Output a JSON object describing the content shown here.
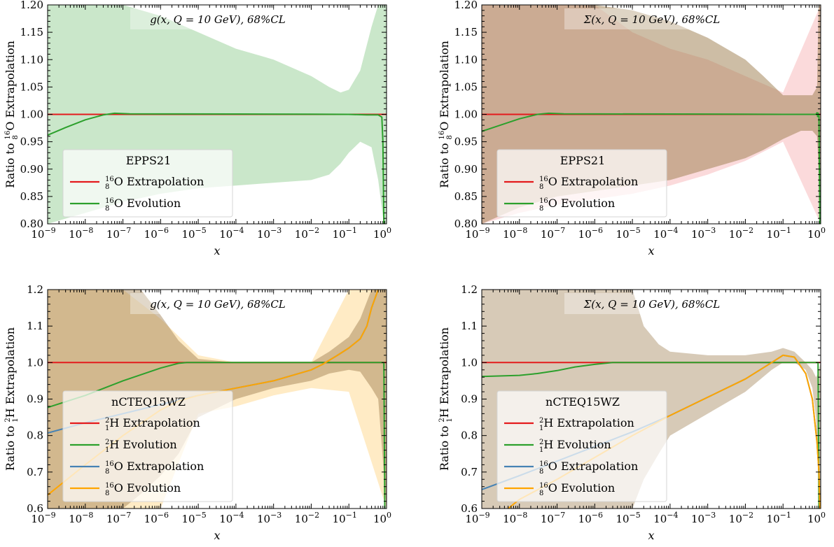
{
  "chart_data": [
    {
      "type": "area",
      "panel": "top-left",
      "title": "g(x, Q = 10 GeV), 68%CL",
      "xlabel": "x",
      "ylabel": "Ratio to 16/8O Extrapolation",
      "ylabel_parts": [
        "Ratio to ",
        "16",
        "8",
        "O Extrapolation"
      ],
      "xscale": "log",
      "xlim": [
        1e-09,
        1
      ],
      "ylim": [
        0.8,
        1.2
      ],
      "yticks": [
        0.8,
        0.85,
        0.9,
        0.95,
        1.0,
        1.05,
        1.1,
        1.15,
        1.2
      ],
      "ytick_labels": [
        "0.80",
        "0.85",
        "0.90",
        "0.95",
        "1.00",
        "1.05",
        "1.10",
        "1.15",
        "1.20"
      ],
      "xtick_exponents": [
        "-9",
        "-8",
        "-7",
        "-6",
        "-5",
        "-4",
        "-3",
        "-2",
        "-1",
        "0"
      ],
      "legend_position": "lower-left",
      "legend_title": "EPPS21",
      "legend": [
        {
          "color": "#e41a1c",
          "parts": [
            "",
            "16",
            "8",
            "O Extrapolation"
          ]
        },
        {
          "color": "#2ca02c",
          "parts": [
            "",
            "16",
            "8",
            "O Evolution"
          ]
        }
      ],
      "bands": [
        {
          "color": "#2ca02c",
          "opacity": 0.25,
          "x": [
            1e-09,
            1e-08,
            1e-07,
            1e-06,
            1e-05,
            0.0001,
            0.001,
            0.01,
            0.03,
            0.06,
            0.1,
            0.2,
            0.4,
            0.6,
            0.85,
            1
          ],
          "upper": [
            1.2,
            1.2,
            1.2,
            1.18,
            1.15,
            1.12,
            1.1,
            1.07,
            1.05,
            1.04,
            1.045,
            1.08,
            1.16,
            1.2,
            1.2,
            1.2
          ],
          "lower": [
            0.8,
            0.82,
            0.84,
            0.855,
            0.865,
            0.87,
            0.875,
            0.88,
            0.89,
            0.91,
            0.93,
            0.95,
            0.94,
            0.88,
            0.8,
            0.8
          ]
        }
      ],
      "series": [
        {
          "color": "#e41a1c",
          "x": [
            1e-09,
            1
          ],
          "y": [
            1.0,
            1.0
          ]
        },
        {
          "color": "#2ca02c",
          "x": [
            1e-09,
            3e-09,
            1e-08,
            3e-08,
            6e-08,
            1.5e-07,
            1e-06,
            0.0001,
            0.01,
            0.1,
            0.3,
            0.6,
            0.75,
            0.8,
            0.85
          ],
          "y": [
            0.962,
            0.976,
            0.99,
            0.999,
            1.002,
            1.001,
            1.0008,
            1.0006,
            1.0003,
            1.0,
            0.999,
            0.999,
            0.995,
            0.95,
            0.8
          ]
        }
      ]
    },
    {
      "type": "area",
      "panel": "top-right",
      "title": "Σ(x, Q = 10 GeV), 68%CL",
      "xlabel": "x",
      "ylabel": "Ratio to 16/8O Extrapolation",
      "ylabel_parts": [
        "Ratio to ",
        "16",
        "8",
        "O Extrapolation"
      ],
      "xscale": "log",
      "xlim": [
        1e-09,
        1
      ],
      "ylim": [
        0.8,
        1.2
      ],
      "yticks": [
        0.8,
        0.85,
        0.9,
        0.95,
        1.0,
        1.05,
        1.1,
        1.15,
        1.2
      ],
      "ytick_labels": [
        "0.80",
        "0.85",
        "0.90",
        "0.95",
        "1.00",
        "1.05",
        "1.10",
        "1.15",
        "1.20"
      ],
      "xtick_exponents": [
        "-9",
        "-8",
        "-7",
        "-6",
        "-5",
        "-4",
        "-3",
        "-2",
        "-1",
        "0"
      ],
      "legend_position": "lower-left",
      "legend_title": "EPPS21",
      "legend": [
        {
          "color": "#e41a1c",
          "parts": [
            "",
            "16",
            "8",
            "O Extrapolation"
          ]
        },
        {
          "color": "#2ca02c",
          "parts": [
            "",
            "16",
            "8",
            "O Evolution"
          ]
        }
      ],
      "bands": [
        {
          "color": "#e41a1c",
          "opacity": 0.16,
          "x": [
            1e-09,
            1e-08,
            1e-07,
            1e-06,
            1e-05,
            0.0001,
            0.001,
            0.01,
            0.1,
            1
          ],
          "upper": [
            1.2,
            1.2,
            1.2,
            1.2,
            1.15,
            1.12,
            1.1,
            1.07,
            1.04,
            1.2
          ],
          "lower": [
            0.8,
            0.82,
            0.835,
            0.845,
            0.855,
            0.87,
            0.89,
            0.915,
            0.95,
            0.8
          ]
        },
        {
          "color": "#9b7b4c",
          "opacity": 0.5,
          "x": [
            1e-09,
            1e-08,
            1e-07,
            1e-06,
            1e-05,
            0.0001,
            0.001,
            0.01,
            0.03,
            0.1,
            0.3,
            0.6,
            0.8,
            0.88,
            0.95,
            1
          ],
          "upper": [
            1.2,
            1.2,
            1.2,
            1.2,
            1.19,
            1.17,
            1.14,
            1.1,
            1.07,
            1.035,
            1.035,
            1.035,
            1.05,
            1.2,
            1.2,
            1.2
          ],
          "lower": [
            0.8,
            0.83,
            0.85,
            0.86,
            0.87,
            0.88,
            0.9,
            0.92,
            0.935,
            0.955,
            0.97,
            0.97,
            0.96,
            0.9,
            0.8,
            0.8
          ]
        }
      ],
      "series": [
        {
          "color": "#e41a1c",
          "x": [
            1e-09,
            1
          ],
          "y": [
            1.0,
            1.0
          ]
        },
        {
          "color": "#2ca02c",
          "x": [
            1e-09,
            3e-09,
            1e-08,
            3e-08,
            6e-08,
            1.5e-07,
            1e-06,
            0.0001,
            0.01,
            0.1,
            0.5,
            0.75,
            0.8,
            0.83,
            0.86,
            0.9,
            0.95
          ],
          "y": [
            0.969,
            0.98,
            0.992,
            1.0,
            1.002,
            1.001,
            1.0008,
            1.0006,
            1.0003,
            1.0,
            1.0,
            1.0,
            1.003,
            0.996,
            1.002,
            0.998,
            0.8
          ]
        }
      ]
    },
    {
      "type": "area",
      "panel": "bottom-left",
      "title": "g(x, Q = 10 GeV), 68%CL",
      "xlabel": "x",
      "ylabel": "Ratio to 2/1H Extrapolation",
      "ylabel_parts": [
        "Ratio to ",
        "2",
        "1",
        "H Extrapolation"
      ],
      "xscale": "log",
      "xlim": [
        1e-09,
        1
      ],
      "ylim": [
        0.6,
        1.2
      ],
      "yticks": [
        0.6,
        0.7,
        0.8,
        0.9,
        1.0,
        1.1,
        1.2
      ],
      "ytick_labels": [
        "0.6",
        "0.7",
        "0.8",
        "0.9",
        "1.0",
        "1.1",
        "1.2"
      ],
      "xtick_exponents": [
        "-9",
        "-8",
        "-7",
        "-6",
        "-5",
        "-4",
        "-3",
        "-2",
        "-1",
        "0"
      ],
      "legend_position": "lower-left",
      "legend_title": "nCTEQ15WZ",
      "legend": [
        {
          "color": "#e41a1c",
          "parts": [
            "",
            "2",
            "1",
            "H Extrapolation"
          ]
        },
        {
          "color": "#2ca02c",
          "parts": [
            "",
            "2",
            "1",
            "H Evolution"
          ]
        },
        {
          "color": "#4682b4",
          "parts": [
            "",
            "16",
            "8",
            "O Extrapolation"
          ]
        },
        {
          "color": "#ffa500",
          "parts": [
            "",
            "16",
            "8",
            "O Evolution"
          ]
        }
      ],
      "bands": [
        {
          "color": "#ffd27f",
          "opacity": 0.45,
          "x": [
            1e-09,
            1e-08,
            1e-07,
            1e-06,
            1e-05,
            0.0001,
            0.001,
            0.01,
            0.1,
            1
          ],
          "upper": [
            1.2,
            1.2,
            1.2,
            1.12,
            1.02,
            1.0,
            1.0,
            1.0,
            1.2,
            1.2
          ],
          "lower": [
            0.6,
            0.6,
            0.6,
            0.6,
            0.86,
            0.88,
            0.91,
            0.93,
            0.92,
            0.6
          ]
        },
        {
          "color": "#9b7b4c",
          "opacity": 0.45,
          "x": [
            1e-09,
            1e-08,
            1e-07,
            3e-07,
            1e-06,
            3e-06,
            1e-05,
            0.0001,
            0.001,
            0.01,
            0.03,
            0.1,
            0.2,
            0.4,
            0.6,
            1
          ],
          "upper": [
            1.2,
            1.2,
            1.2,
            1.2,
            1.13,
            1.06,
            1.01,
            1.0,
            1.0,
            1.0,
            1.03,
            1.07,
            1.12,
            1.2,
            1.2,
            1.2
          ],
          "lower": [
            0.6,
            0.6,
            0.6,
            0.64,
            0.69,
            0.75,
            0.85,
            0.9,
            0.93,
            0.95,
            0.97,
            0.98,
            0.975,
            0.93,
            0.9,
            0.6
          ]
        }
      ],
      "series": [
        {
          "color": "#e41a1c",
          "x": [
            1e-09,
            1
          ],
          "y": [
            1.0,
            1.0
          ]
        },
        {
          "color": "#2ca02c",
          "x": [
            1e-09,
            1e-08,
            1e-07,
            1e-06,
            3e-06,
            5e-06,
            1e-05,
            0.001,
            0.1,
            0.5,
            0.85,
            0.9
          ],
          "y": [
            0.877,
            0.91,
            0.95,
            0.985,
            0.998,
            1.0,
            1.0,
            1.0,
            1.0,
            1.0,
            1.0,
            0.6
          ]
        },
        {
          "color": "#4682b4",
          "x": [
            1e-09,
            1e-08,
            1e-07,
            1e-06,
            1e-05,
            0.0001,
            0.001,
            0.01,
            0.02,
            0.05,
            0.1,
            0.2,
            0.3,
            0.4,
            0.6
          ],
          "y": [
            0.807,
            0.835,
            0.86,
            0.885,
            0.91,
            0.93,
            0.95,
            0.98,
            0.995,
            1.02,
            1.04,
            1.065,
            1.1,
            1.15,
            1.2
          ]
        },
        {
          "color": "#ffa500",
          "x": [
            1e-09,
            1e-08,
            1e-07,
            1e-06,
            3e-06,
            1e-05,
            0.0001,
            0.001,
            0.01,
            0.02,
            0.05,
            0.1,
            0.2,
            0.3,
            0.4,
            0.6
          ],
          "y": [
            0.637,
            0.72,
            0.8,
            0.87,
            0.895,
            0.91,
            0.93,
            0.95,
            0.98,
            0.995,
            1.02,
            1.04,
            1.065,
            1.1,
            1.15,
            1.2
          ]
        }
      ]
    },
    {
      "type": "area",
      "panel": "bottom-right",
      "title": "Σ(x, Q = 10 GeV), 68%CL",
      "xlabel": "x",
      "ylabel": "Ratio to 2/1H Extrapolation",
      "ylabel_parts": [
        "Ratio to ",
        "2",
        "1",
        "H Extrapolation"
      ],
      "xscale": "log",
      "xlim": [
        1e-09,
        1
      ],
      "ylim": [
        0.6,
        1.2
      ],
      "yticks": [
        0.6,
        0.7,
        0.8,
        0.9,
        1.0,
        1.1,
        1.2
      ],
      "ytick_labels": [
        "0.6",
        "0.7",
        "0.8",
        "0.9",
        "1.0",
        "1.1",
        "1.2"
      ],
      "xtick_exponents": [
        "-9",
        "-8",
        "-7",
        "-6",
        "-5",
        "-4",
        "-3",
        "-2",
        "-1",
        "0"
      ],
      "legend_position": "lower-left",
      "legend_title": "nCTEQ15WZ",
      "legend": [
        {
          "color": "#e41a1c",
          "parts": [
            "",
            "2",
            "1",
            "H Extrapolation"
          ]
        },
        {
          "color": "#2ca02c",
          "parts": [
            "",
            "2",
            "1",
            "H Evolution"
          ]
        },
        {
          "color": "#4682b4",
          "parts": [
            "",
            "16",
            "8",
            "O Extrapolation"
          ]
        },
        {
          "color": "#ffa500",
          "parts": [
            "",
            "16",
            "8",
            "O Evolution"
          ]
        }
      ],
      "bands": [
        {
          "color": "#9b7b4c",
          "opacity": 0.4,
          "x": [
            1e-09,
            1e-08,
            1e-07,
            1e-06,
            2e-06,
            5e-06,
            1e-05,
            2e-05,
            5e-05,
            0.0001,
            0.001,
            0.01,
            0.05,
            0.1,
            0.2,
            0.4,
            0.6,
            0.75,
            0.85,
            1
          ],
          "upper": [
            1.2,
            1.2,
            1.2,
            1.2,
            1.2,
            1.2,
            1.2,
            1.1,
            1.05,
            1.03,
            1.02,
            1.02,
            1.03,
            1.04,
            1.03,
            1.0,
            0.98,
            0.96,
            0.97,
            1.0
          ],
          "lower": [
            0.6,
            0.6,
            0.6,
            0.6,
            0.6,
            0.6,
            0.6,
            0.68,
            0.75,
            0.8,
            0.86,
            0.92,
            0.98,
            1.0,
            1.0,
            0.98,
            0.93,
            0.85,
            0.7,
            0.6
          ]
        }
      ],
      "series": [
        {
          "color": "#e41a1c",
          "x": [
            1e-09,
            1
          ],
          "y": [
            1.0,
            1.0
          ]
        },
        {
          "color": "#2ca02c",
          "x": [
            1e-09,
            1e-08,
            3e-08,
            1e-07,
            3e-07,
            1e-06,
            3e-06,
            5e-06,
            1e-05,
            0.001,
            0.1,
            0.5,
            0.85,
            0.9
          ],
          "y": [
            0.962,
            0.965,
            0.97,
            0.978,
            0.988,
            0.995,
            1.0,
            1.0,
            1.0,
            1.0,
            1.0,
            1.0,
            1.0,
            0.6
          ]
        },
        {
          "color": "#4682b4",
          "x": [
            1e-09,
            1e-08,
            1e-07,
            1e-06,
            1e-05,
            0.0001,
            0.001,
            0.01,
            0.05,
            0.1,
            0.2,
            0.4,
            0.6,
            0.8,
            0.9,
            0.95
          ],
          "y": [
            0.652,
            0.69,
            0.73,
            0.77,
            0.81,
            0.855,
            0.905,
            0.955,
            1.0,
            1.02,
            1.015,
            0.97,
            0.9,
            0.78,
            0.7,
            0.6
          ]
        },
        {
          "color": "#ffa500",
          "x": [
            5e-09,
            1e-08,
            1e-07,
            1e-06,
            1e-05,
            0.0001,
            0.001,
            0.01,
            0.05,
            0.1,
            0.2,
            0.4,
            0.6,
            0.8,
            0.9,
            0.95
          ],
          "y": [
            0.6,
            0.625,
            0.68,
            0.74,
            0.8,
            0.855,
            0.905,
            0.955,
            1.0,
            1.02,
            1.015,
            0.97,
            0.9,
            0.78,
            0.7,
            0.6
          ]
        }
      ]
    }
  ]
}
